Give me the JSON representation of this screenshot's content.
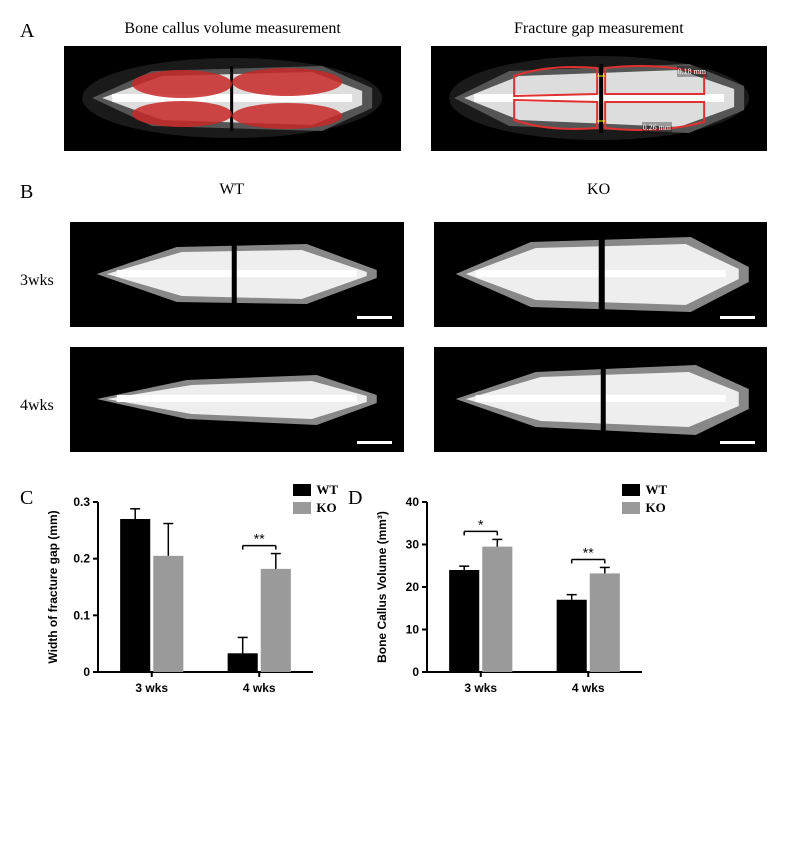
{
  "panelA": {
    "label": "A",
    "left_title": "Bone callus volume measurement",
    "right_title": "Fracture gap measurement",
    "measurements": {
      "top": "0.18 mm",
      "bottom": "0.26 mm"
    }
  },
  "panelB": {
    "label": "B",
    "col_left": "WT",
    "col_right": "KO",
    "row1": "3wks",
    "row2": "4wks"
  },
  "panelC": {
    "label": "C",
    "type": "bar",
    "ylabel": "Width of fracture gap (mm)",
    "categories": [
      "3 wks",
      "4 wks"
    ],
    "series": [
      {
        "name": "WT",
        "color": "#000000",
        "values": [
          0.27,
          0.033
        ],
        "errors": [
          0.018,
          0.028
        ]
      },
      {
        "name": "KO",
        "color": "#9a9a9a",
        "values": [
          0.205,
          0.182
        ],
        "errors": [
          0.057,
          0.027
        ]
      }
    ],
    "ylim": [
      0,
      0.3
    ],
    "ytick_step": 0.1,
    "annotations": [
      {
        "group": 1,
        "text": "**"
      }
    ],
    "background_color": "#ffffff",
    "axis_color": "#000000",
    "label_fontsize": 12,
    "tick_fontsize": 12
  },
  "panelD": {
    "label": "D",
    "type": "bar",
    "ylabel": "Bone Callus Volume (mm³)",
    "categories": [
      "3 wks",
      "4 wks"
    ],
    "series": [
      {
        "name": "WT",
        "color": "#000000",
        "values": [
          24,
          17
        ],
        "errors": [
          0.9,
          1.2
        ]
      },
      {
        "name": "KO",
        "color": "#9a9a9a",
        "values": [
          29.5,
          23.2
        ],
        "errors": [
          1.7,
          1.4
        ]
      }
    ],
    "ylim": [
      0,
      40
    ],
    "ytick_step": 10,
    "annotations": [
      {
        "group": 0,
        "text": "*"
      },
      {
        "group": 1,
        "text": "**"
      }
    ],
    "background_color": "#ffffff",
    "axis_color": "#000000",
    "label_fontsize": 12,
    "tick_fontsize": 12
  },
  "legend": {
    "items": [
      {
        "label": "WT",
        "color": "#000000"
      },
      {
        "label": "KO",
        "color": "#9a9a9a"
      }
    ]
  },
  "colors": {
    "red_overlay": "#d42828",
    "red_outline": "#e03030",
    "bone_white": "#f5f5f5",
    "scan_bg": "#000000"
  }
}
